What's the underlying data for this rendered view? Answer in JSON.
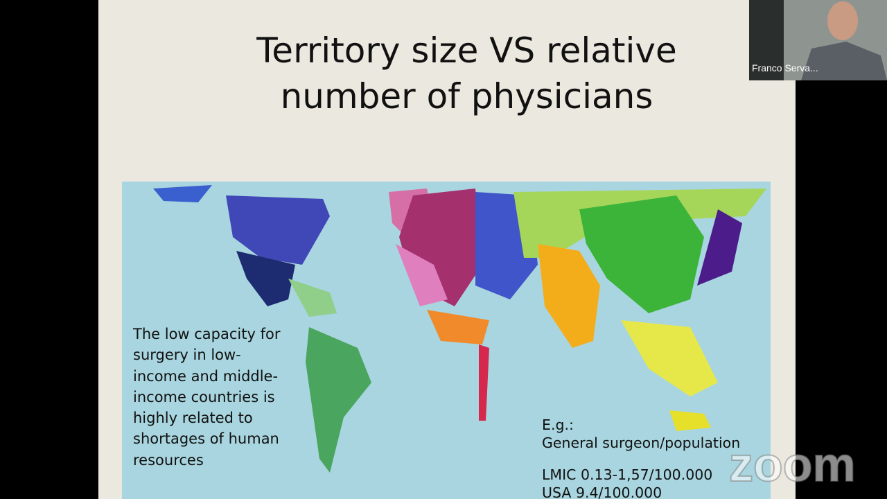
{
  "slide": {
    "title_lines": [
      "Territory size VS relative",
      "number of physicians"
    ],
    "body_lines": [
      "The low capacity for",
      "surgery in low-",
      "income and middle-",
      "income countries is",
      "highly related to",
      "shortages of human",
      "resources"
    ],
    "example_lines": [
      "E.g.:",
      "General surgeon/population",
      "LMIC 0.13-1,57/100.000",
      "USA 9.4/100.000"
    ]
  },
  "participant": {
    "name": "Franco Serva..."
  },
  "watermark": "zoom"
}
